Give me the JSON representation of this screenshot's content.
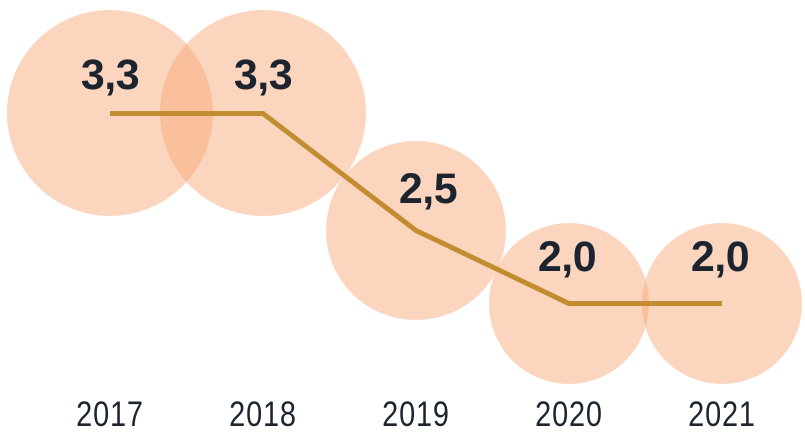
{
  "chart_data": {
    "type": "line",
    "subtype": "bubble-line",
    "title": "",
    "xlabel": "",
    "ylabel": "",
    "categories": [
      "2017",
      "2018",
      "2019",
      "2020",
      "2021"
    ],
    "values": [
      3.3,
      3.3,
      2.5,
      2.0,
      2.0
    ],
    "point_labels": [
      "3,3",
      "3,3",
      "2,5",
      "2,0",
      "2,0"
    ],
    "decimal_separator": ",",
    "axes_visible": false,
    "grid": false,
    "legend_position": "none",
    "bubble_area_proportional_to_value": true,
    "colors": {
      "bubble_fill": "#F9A674",
      "bubble_opacity": 0.47,
      "line": "#C28C30",
      "text": "#1C2430",
      "background": "#FFFFFF"
    }
  }
}
